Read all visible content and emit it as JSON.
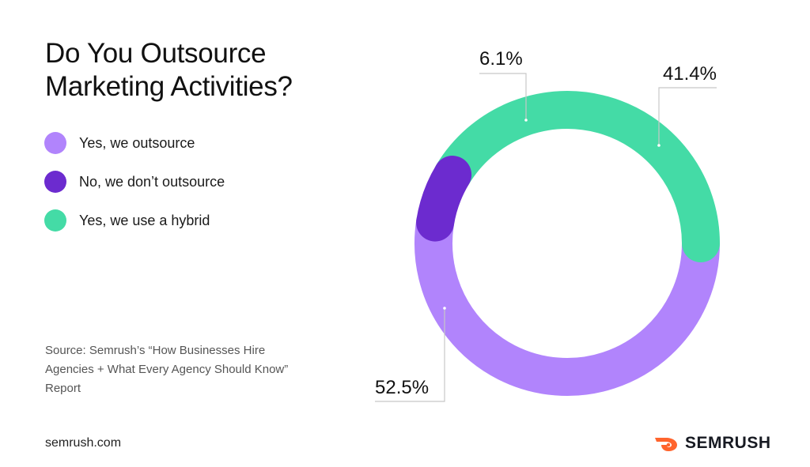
{
  "title_lines": [
    "Do You Outsource",
    "Marketing Activities?"
  ],
  "legend": [
    {
      "label": "Yes, we outsource",
      "color": "#b184fc"
    },
    {
      "label": "No, we don’t outsource",
      "color": "#6c2bcf"
    },
    {
      "label": "Yes, we use a hybrid",
      "color": "#44dba6"
    }
  ],
  "source_text": "Source: Semrush’s “How Businesses Hire Agencies + What Every Agency Should Know” Report",
  "footer_url": "semrush.com",
  "brand_name": "SEMRUSH",
  "brand_color": "#ff642d",
  "chart_data": {
    "type": "pie",
    "style": "donut",
    "categories": [
      "Yes, we outsource",
      "No, we don’t outsource",
      "Yes, we use a hybrid"
    ],
    "values": [
      52.5,
      6.1,
      41.4
    ],
    "value_labels": [
      "52.5%",
      "6.1%",
      "41.4%"
    ],
    "colors": [
      "#b184fc",
      "#6c2bcf",
      "#44dba6"
    ],
    "legend_position": "left"
  }
}
